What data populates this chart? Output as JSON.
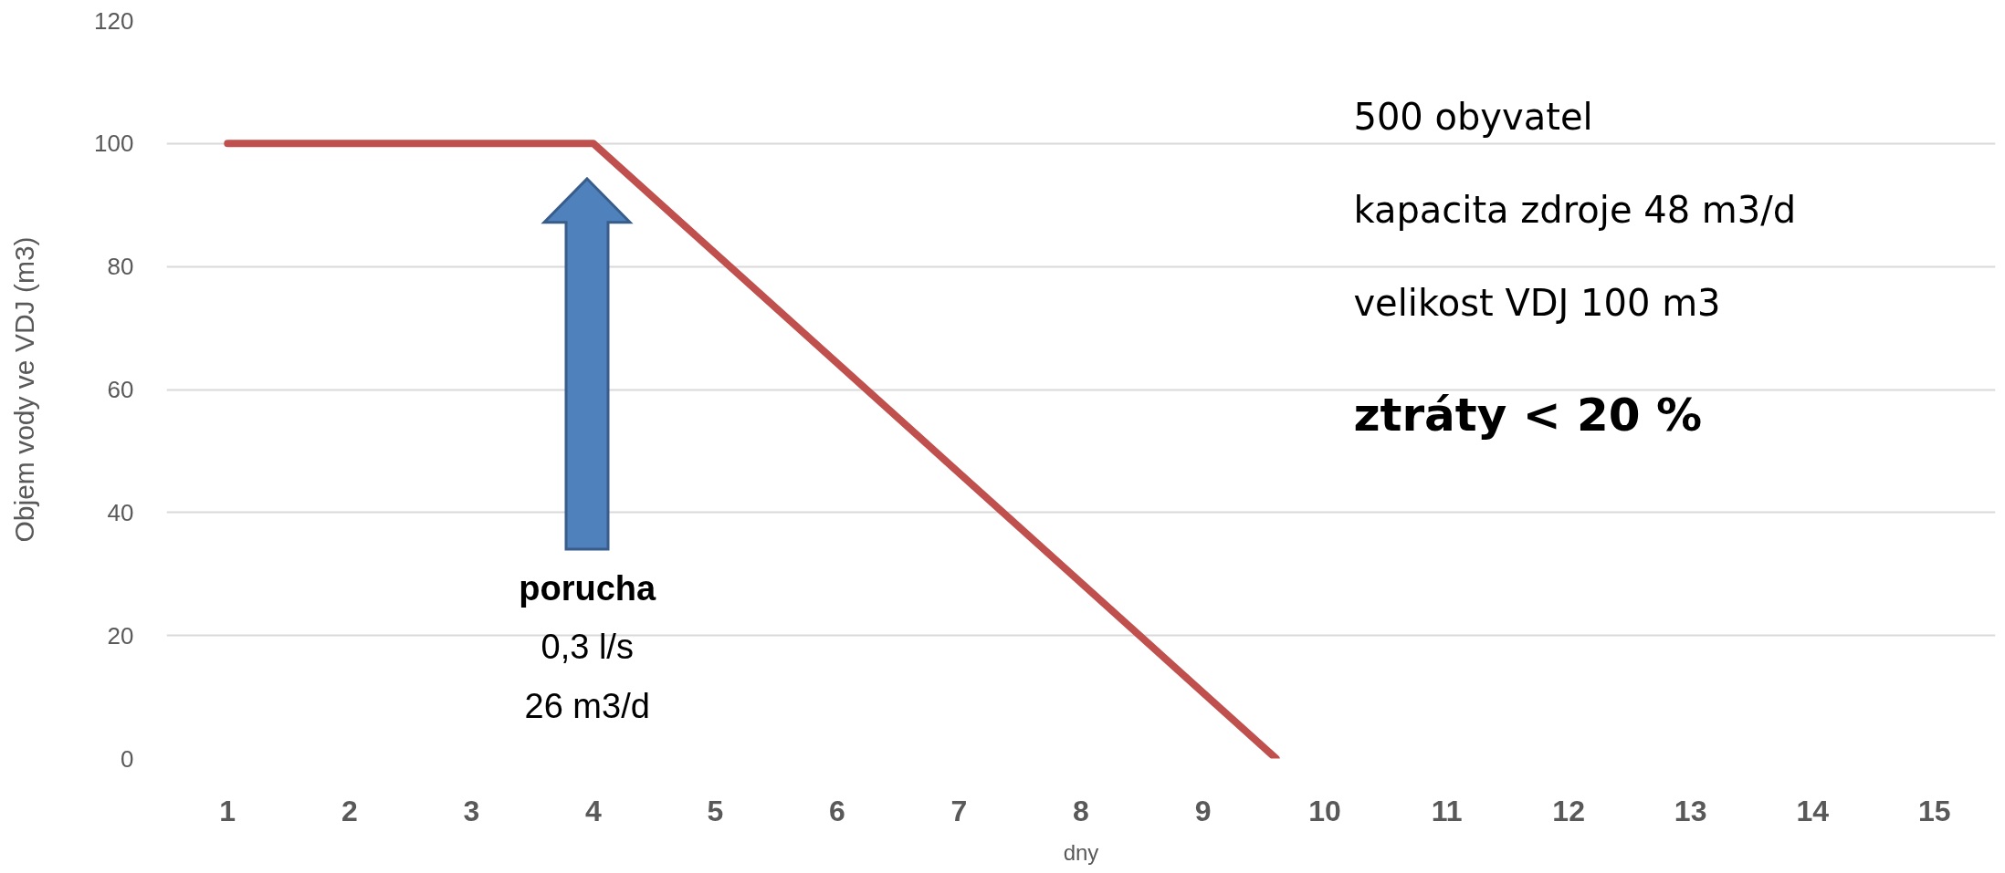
{
  "chart_data": {
    "type": "line",
    "xlabel": "dny",
    "ylabel": "Objem vody ve VDJ (m3)",
    "x": [
      1,
      4,
      9.6
    ],
    "series": [
      {
        "color": "#c0504d",
        "values": [
          100,
          100,
          0
        ]
      }
    ],
    "xlim": [
      0.5,
      15.5
    ],
    "xticks": [
      1,
      2,
      3,
      4,
      5,
      6,
      7,
      8,
      9,
      10,
      11,
      12,
      13,
      14,
      15
    ],
    "ylim": [
      0,
      120
    ],
    "yticks": [
      0,
      20,
      40,
      60,
      80,
      100,
      120
    ],
    "grid": "y",
    "line_style": "solid",
    "annotations": [
      "porucha",
      "0,3 l/s",
      "26 m3/d",
      "500 obyvatel",
      "kapacita zdroje  48 m3/d",
      "velikost VDJ 100 m3",
      "ztráty < 20 %"
    ]
  }
}
